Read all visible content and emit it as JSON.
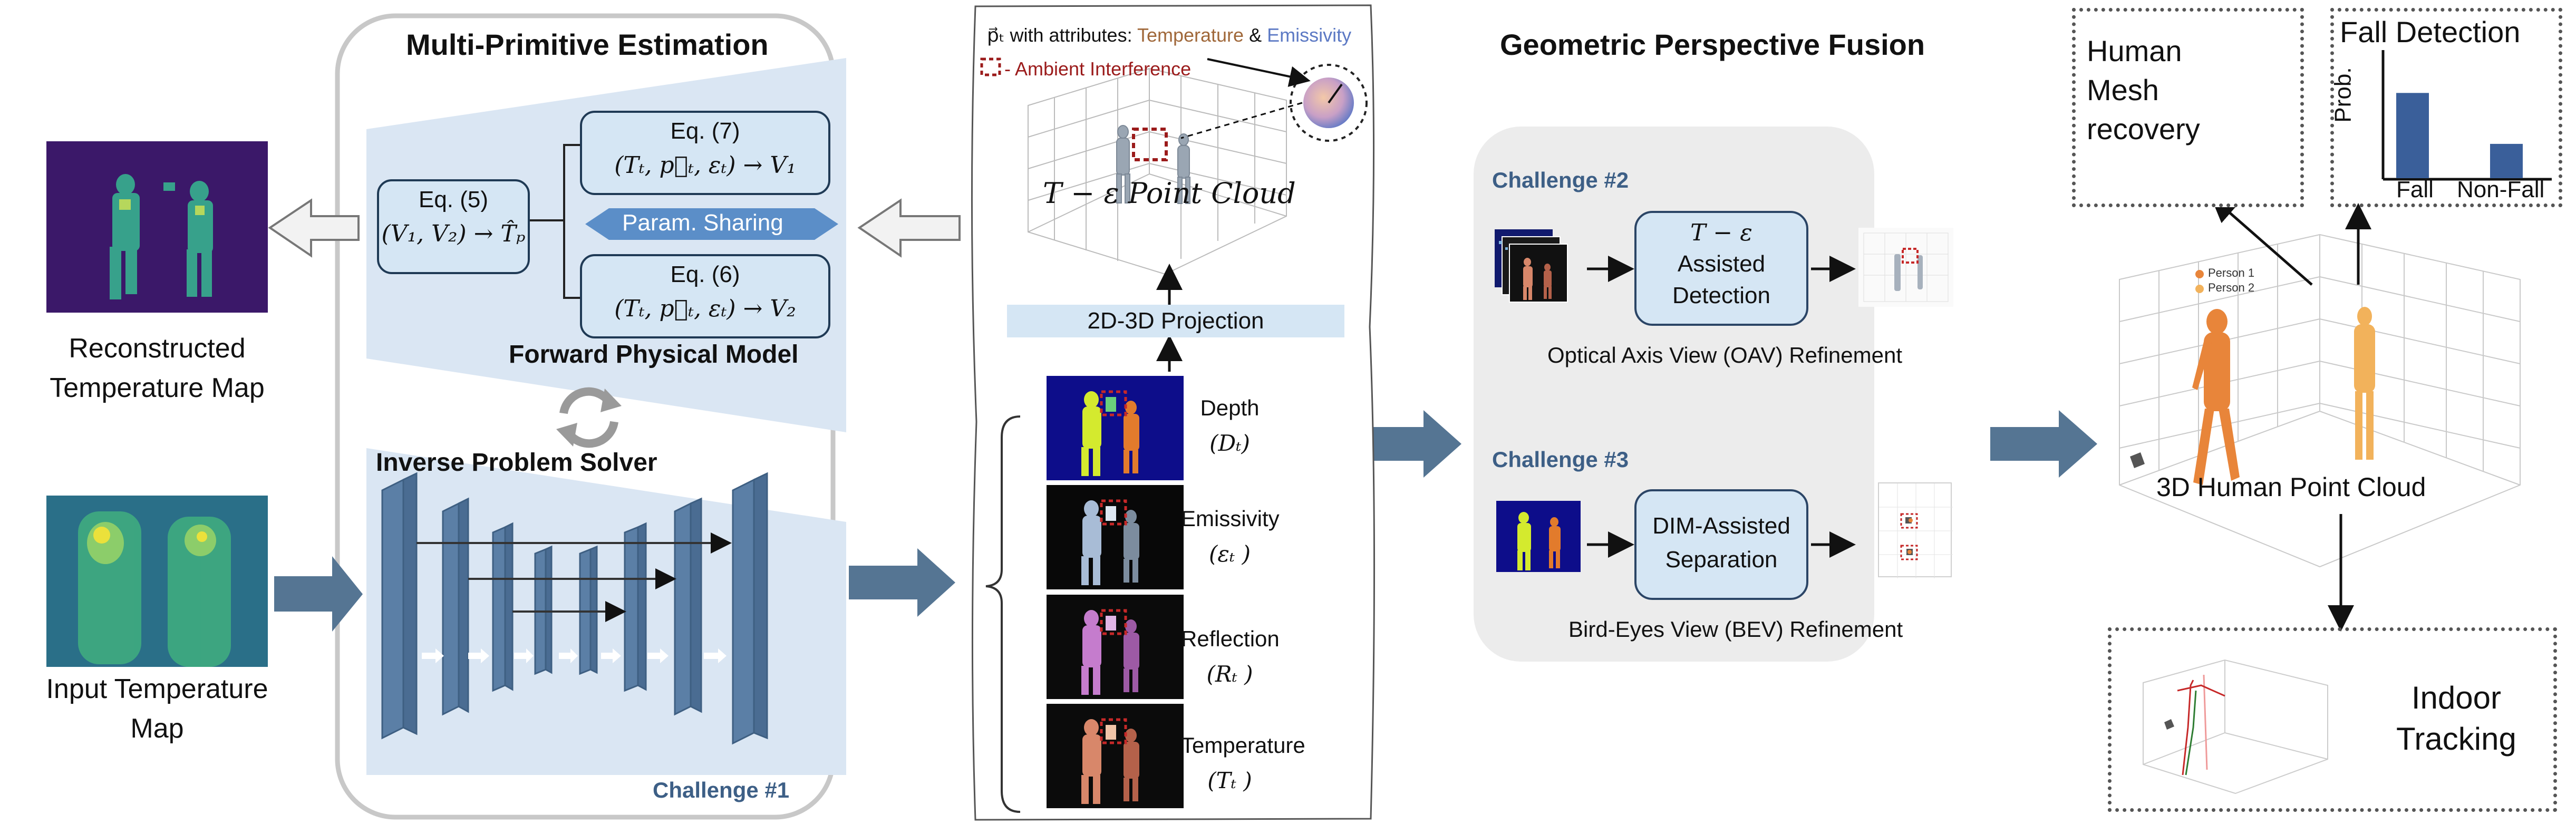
{
  "left": {
    "reconstructed_caption": "Reconstructed\nTemperature Map",
    "input_caption": "Input Temperature\nMap"
  },
  "mpe": {
    "title": "Multi-Primitive Estimation",
    "eq5_title": "Eq. (5)",
    "eq5_formula": "(V₁, V₂) → T̂ₚ",
    "eq7_title": "Eq. (7)",
    "eq7_formula": "(Tₜ, p⃗ₜ, εₜ) → V₁",
    "eq6_title": "Eq. (6)",
    "eq6_formula": "(Tₜ, p⃗ₜ, εₜ) → V₂",
    "param_sharing": "Param. Sharing",
    "forward_model": "Forward Physical Model",
    "inverse_solver": "Inverse Problem Solver",
    "challenge1": "Challenge #1"
  },
  "middle": {
    "legend_pt": "p⃗ₜ with attributes:",
    "legend_temperature": "Temperature",
    "legend_amp": "&",
    "legend_emissivity": "Emissivity",
    "legend_ambient": "- Ambient Interference",
    "point_cloud_label": "T − ε Point Cloud",
    "projection_label": "2D-3D Projection",
    "modalities": [
      {
        "name": "Depth",
        "symbol": "(Dₜ)"
      },
      {
        "name": "Emissivity",
        "symbol": "(εₜ )"
      },
      {
        "name": "Reflection",
        "symbol": "(Rₜ )"
      },
      {
        "name": "Temperature",
        "symbol": "(Tₜ )"
      }
    ]
  },
  "gpf": {
    "title": "Geometric Perspective Fusion",
    "challenge2": "Challenge #2",
    "te_detect_line1": "T − ε",
    "te_detect_line2": "Assisted",
    "te_detect_line3": "Detection",
    "oav_caption": "Optical Axis View (OAV) Refinement",
    "challenge3": "Challenge #3",
    "dim_line1": "DIM-Assisted",
    "dim_line2": "Separation",
    "bev_caption": "Bird-Eyes View (BEV) Refinement"
  },
  "right": {
    "hmr_label": "Human\nMesh\nrecovery",
    "fall_title": "Fall Detection",
    "fall_ylabel": "Prob.",
    "fall_xlabel_1": "Fall",
    "fall_xlabel_2": "Non-Fall",
    "pc3d_label": "3D Human Point Cloud",
    "person1": "Person 1",
    "person2": "Person 2",
    "tracking_label": "Indoor\nTracking"
  },
  "colors": {
    "arrow_fill": "#557593",
    "light_panel": "#dae6f3",
    "box_fill": "#d5e6f4",
    "challenge_text": "#3d5f86",
    "temperature_text": "#a0683a",
    "emissivity_text": "#5c79c4",
    "ambient_red": "#9b1b1b"
  },
  "chart_data": {
    "type": "bar",
    "title": "Fall Detection",
    "ylabel": "Prob.",
    "categories": [
      "Fall",
      "Non-Fall"
    ],
    "values": [
      0.77,
      0.31
    ],
    "ylim": [
      0,
      1
    ]
  }
}
